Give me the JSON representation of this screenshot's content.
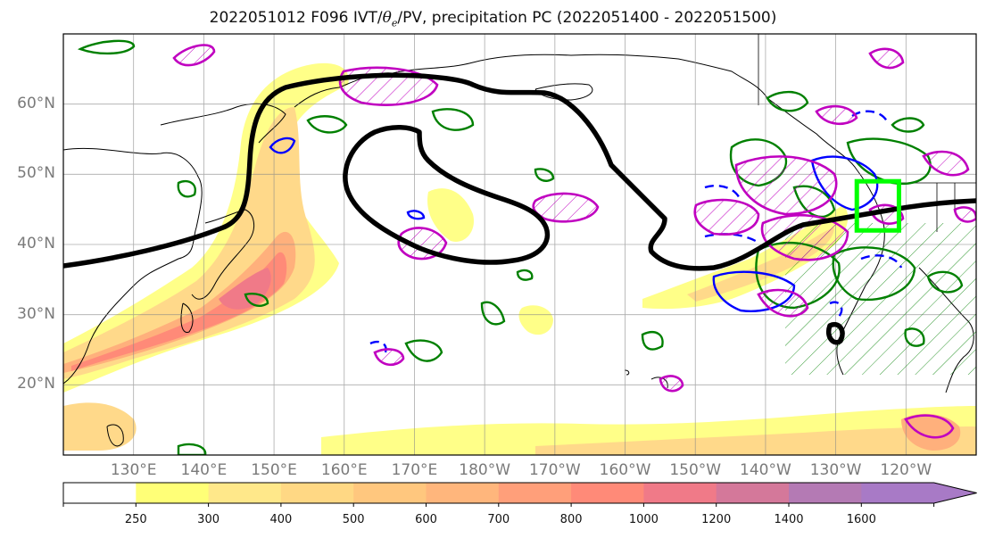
{
  "title": {
    "prefix": "2022051012 F096 IVT/",
    "theta": "θ",
    "theta_sub": "e",
    "suffix": "/PV, precipitation PC (2022051400 - 2022051500)"
  },
  "map": {
    "lon_range": [
      120,
      250
    ],
    "lat_range": [
      10,
      70
    ],
    "grid": true,
    "lat_labels": [
      {
        "value": 20,
        "label": "20°N"
      },
      {
        "value": 30,
        "label": "30°N"
      },
      {
        "value": 40,
        "label": "40°N"
      },
      {
        "value": 50,
        "label": "50°N"
      },
      {
        "value": 60,
        "label": "60°N"
      }
    ],
    "lon_labels": [
      {
        "value": 130,
        "label": "130°E"
      },
      {
        "value": 140,
        "label": "140°E"
      },
      {
        "value": 150,
        "label": "150°E"
      },
      {
        "value": 160,
        "label": "160°E"
      },
      {
        "value": 170,
        "label": "170°E"
      },
      {
        "value": 180,
        "label": "180°W"
      },
      {
        "value": 190,
        "label": "170°W"
      },
      {
        "value": 200,
        "label": "160°W"
      },
      {
        "value": 210,
        "label": "150°W"
      },
      {
        "value": 220,
        "label": "140°W"
      },
      {
        "value": 230,
        "label": "130°W"
      },
      {
        "value": 240,
        "label": "120°W"
      }
    ],
    "highlight_box": {
      "lon": [
        233,
        239
      ],
      "lat": [
        42,
        49
      ],
      "color": "#00ff00"
    },
    "colors": {
      "pv_line": "#000000",
      "theta_positive": "#008000",
      "theta_negative": "#0000ff",
      "precip_pc": "#c000c0"
    }
  },
  "colorbar": {
    "levels": [
      250,
      300,
      400,
      500,
      600,
      700,
      800,
      1000,
      1200,
      1400,
      1600
    ],
    "colors": [
      "#ffffff",
      "#ffff77",
      "#ffe88a",
      "#ffd884",
      "#ffc77e",
      "#ffb67c",
      "#ff9f7a",
      "#ff8a78",
      "#f07a88",
      "#d4789a",
      "#b47ab4",
      "#a87ac6"
    ]
  }
}
